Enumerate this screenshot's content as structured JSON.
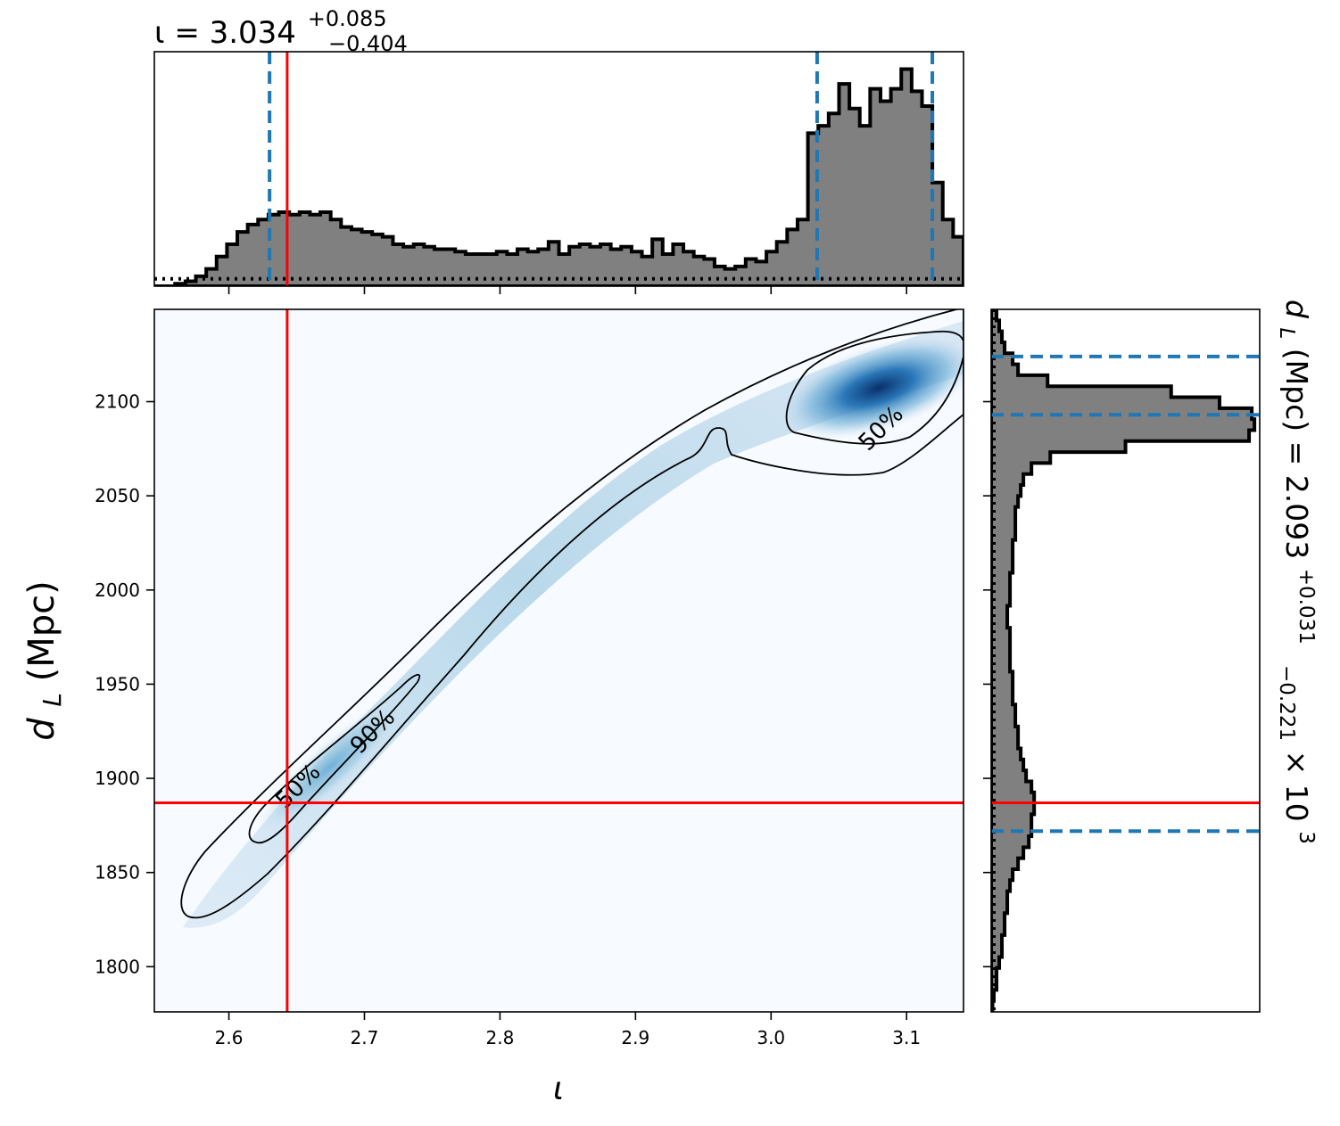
{
  "chart_data": {
    "type": "corner-plot",
    "parameters": {
      "x": {
        "symbol": "ι",
        "title_main": "ι = 3.034",
        "title_plus": "+0.085",
        "title_minus": "−0.404",
        "xlabel": "ι",
        "range": [
          2.545,
          3.142
        ],
        "ticks": [
          2.6,
          2.7,
          2.8,
          2.9,
          3.0,
          3.1
        ],
        "tick_labels": [
          "2.6",
          "2.7",
          "2.8",
          "2.9",
          "3.0",
          "3.1"
        ],
        "true_value": 2.643,
        "quantile_lines": [
          2.63,
          3.034,
          3.119
        ]
      },
      "y": {
        "symbol": "d_L",
        "ylabel_main": "d",
        "ylabel_sub": "L",
        "ylabel_unit": " (Mpc)",
        "title_main": "d",
        "title_sub": "L",
        "title_rest": " (Mpc) = 2.093",
        "title_plus": "+0.031",
        "title_minus": "−0.221",
        "title_factor": " × 10",
        "title_exp": "3",
        "range": [
          1776,
          2149
        ],
        "ticks": [
          1800,
          1850,
          1900,
          1950,
          2000,
          2050,
          2100
        ],
        "tick_labels": [
          "1800",
          "1850",
          "1900",
          "1950",
          "2000",
          "2050",
          "2100"
        ],
        "true_value": 1887,
        "quantile_lines": [
          1872,
          2093,
          2124
        ]
      }
    },
    "x_histogram": {
      "bin_edges_range": [
        2.545,
        3.142
      ],
      "counts": [
        0.0,
        0.0,
        0.01,
        0.02,
        0.04,
        0.07,
        0.12,
        0.17,
        0.22,
        0.25,
        0.27,
        0.29,
        0.3,
        0.29,
        0.3,
        0.29,
        0.3,
        0.27,
        0.24,
        0.23,
        0.22,
        0.21,
        0.2,
        0.17,
        0.16,
        0.17,
        0.16,
        0.15,
        0.15,
        0.14,
        0.13,
        0.13,
        0.13,
        0.14,
        0.13,
        0.15,
        0.14,
        0.15,
        0.18,
        0.13,
        0.16,
        0.17,
        0.16,
        0.17,
        0.15,
        0.16,
        0.14,
        0.12,
        0.19,
        0.13,
        0.17,
        0.14,
        0.12,
        0.11,
        0.08,
        0.07,
        0.08,
        0.11,
        0.1,
        0.14,
        0.18,
        0.23,
        0.27,
        0.62,
        0.65,
        0.7,
        0.82,
        0.72,
        0.65,
        0.8,
        0.75,
        0.8,
        0.88,
        0.79,
        0.73,
        0.42,
        0.27,
        0.2
      ],
      "prior_level": 0.03
    },
    "y_histogram": {
      "bin_edges_range": [
        1776,
        2149
      ],
      "counts": [
        0.005,
        0.01,
        0.02,
        0.02,
        0.03,
        0.04,
        0.04,
        0.05,
        0.05,
        0.06,
        0.06,
        0.07,
        0.08,
        0.1,
        0.12,
        0.14,
        0.15,
        0.15,
        0.16,
        0.16,
        0.15,
        0.13,
        0.12,
        0.11,
        0.1,
        0.1,
        0.09,
        0.09,
        0.08,
        0.08,
        0.08,
        0.07,
        0.07,
        0.07,
        0.07,
        0.06,
        0.06,
        0.07,
        0.07,
        0.07,
        0.08,
        0.08,
        0.08,
        0.09,
        0.09,
        0.09,
        0.1,
        0.11,
        0.12,
        0.15,
        0.22,
        0.5,
        0.96,
        0.98,
        0.97,
        0.85,
        0.67,
        0.21,
        0.1,
        0.08,
        0.05,
        0.04,
        0.03,
        0.02
      ],
      "prior_level": 0.01
    },
    "contours": [
      {
        "label": "90%",
        "label_position": [
          2.71,
          1922
        ]
      },
      {
        "label": "50%",
        "label_position": [
          2.655,
          1893
        ]
      },
      {
        "label": "50%",
        "label_position": [
          3.085,
          2083
        ]
      }
    ],
    "colors": {
      "hist_fill": "#808080",
      "density_cmap_low": "#f7fbff",
      "density_cmap_high": "#08306b",
      "truth_line": "#ff0000",
      "quantile_line": "#1f77b4",
      "contour_line": "#000000"
    }
  }
}
